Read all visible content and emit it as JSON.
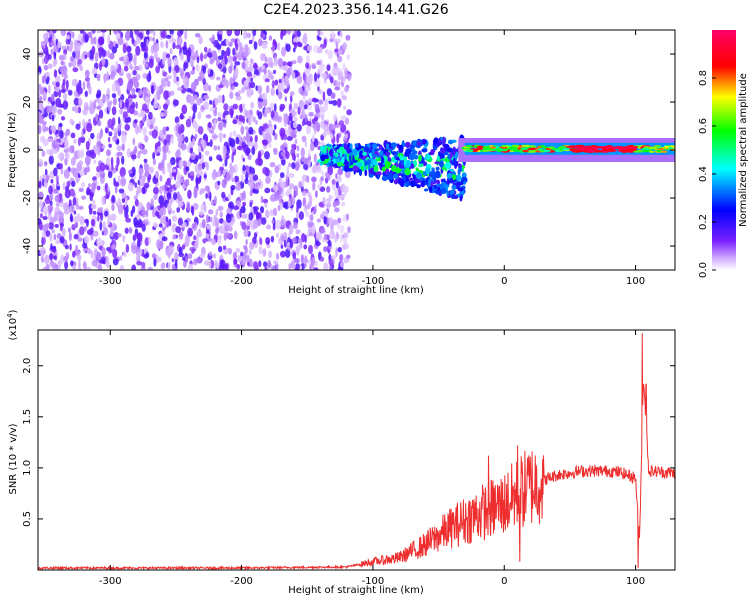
{
  "chart_data": [
    {
      "type": "heatmap",
      "title": "C2E4.2023.356.14.41.G26",
      "xlabel": "Height of straight line (km)",
      "ylabel": "Frequency (Hz)",
      "xlim": [
        -355,
        130
      ],
      "ylim": [
        -50,
        50
      ],
      "x_ticks": [
        -300,
        -200,
        -100,
        0,
        100
      ],
      "y_ticks": [
        -40,
        -20,
        0,
        20,
        40
      ],
      "colorbar": {
        "label": "Normalized spectral amplitude",
        "range": [
          0.0,
          1.0
        ],
        "ticks": [
          0.0,
          0.2,
          0.4,
          0.6,
          0.8
        ],
        "colormap": [
          "#ffffff",
          "#7a22ff",
          "#0000ff",
          "#00ffff",
          "#00ff00",
          "#ffff00",
          "#ff0000",
          "#ff0066"
        ]
      },
      "regions": [
        {
          "description": "scattered purple noise",
          "x_range": [
            -355,
            -120
          ],
          "y_range": [
            -50,
            50
          ],
          "amplitude": 0.1
        },
        {
          "description": "turbulent transition band",
          "x_range": [
            -140,
            -30
          ],
          "y_range": [
            -20,
            12
          ],
          "amplitude": 0.4
        },
        {
          "description": "steady carrier line",
          "x_range": [
            -30,
            130
          ],
          "y_range": [
            -2,
            3
          ],
          "amplitude": 0.95
        }
      ]
    },
    {
      "type": "line",
      "xlabel": "Height of straight line (km)",
      "ylabel": "SNR (10 * v/v)",
      "y_multiplier": "(x10",
      "y_multiplier_exp": "4",
      "y_multiplier_close": ")",
      "xlim": [
        -355,
        130
      ],
      "ylim": [
        0,
        2.35
      ],
      "x_ticks": [
        -300,
        -200,
        -100,
        0,
        100
      ],
      "y_ticks": [
        0.5,
        1.0,
        1.5,
        2.0
      ],
      "line_color": "#ee2e2e",
      "profile": {
        "x": [
          -355,
          -300,
          -200,
          -120,
          -100,
          -80,
          -60,
          -40,
          -20,
          0,
          20,
          40,
          60,
          80,
          90,
          100,
          103,
          106,
          110,
          130
        ],
        "y": [
          0.02,
          0.02,
          0.02,
          0.03,
          0.08,
          0.12,
          0.25,
          0.42,
          0.55,
          0.65,
          0.83,
          0.93,
          0.97,
          0.97,
          0.95,
          0.9,
          0.3,
          1.9,
          0.97,
          0.95
        ]
      },
      "spikes": [
        {
          "x": -12,
          "y": 1.12
        },
        {
          "x": 10,
          "y": 1.22
        },
        {
          "x": 12,
          "y": 0.08
        },
        {
          "x": 102,
          "y": 0.02
        },
        {
          "x": 105,
          "y": 2.32
        },
        {
          "x": 108,
          "y": 1.82
        }
      ]
    }
  ]
}
